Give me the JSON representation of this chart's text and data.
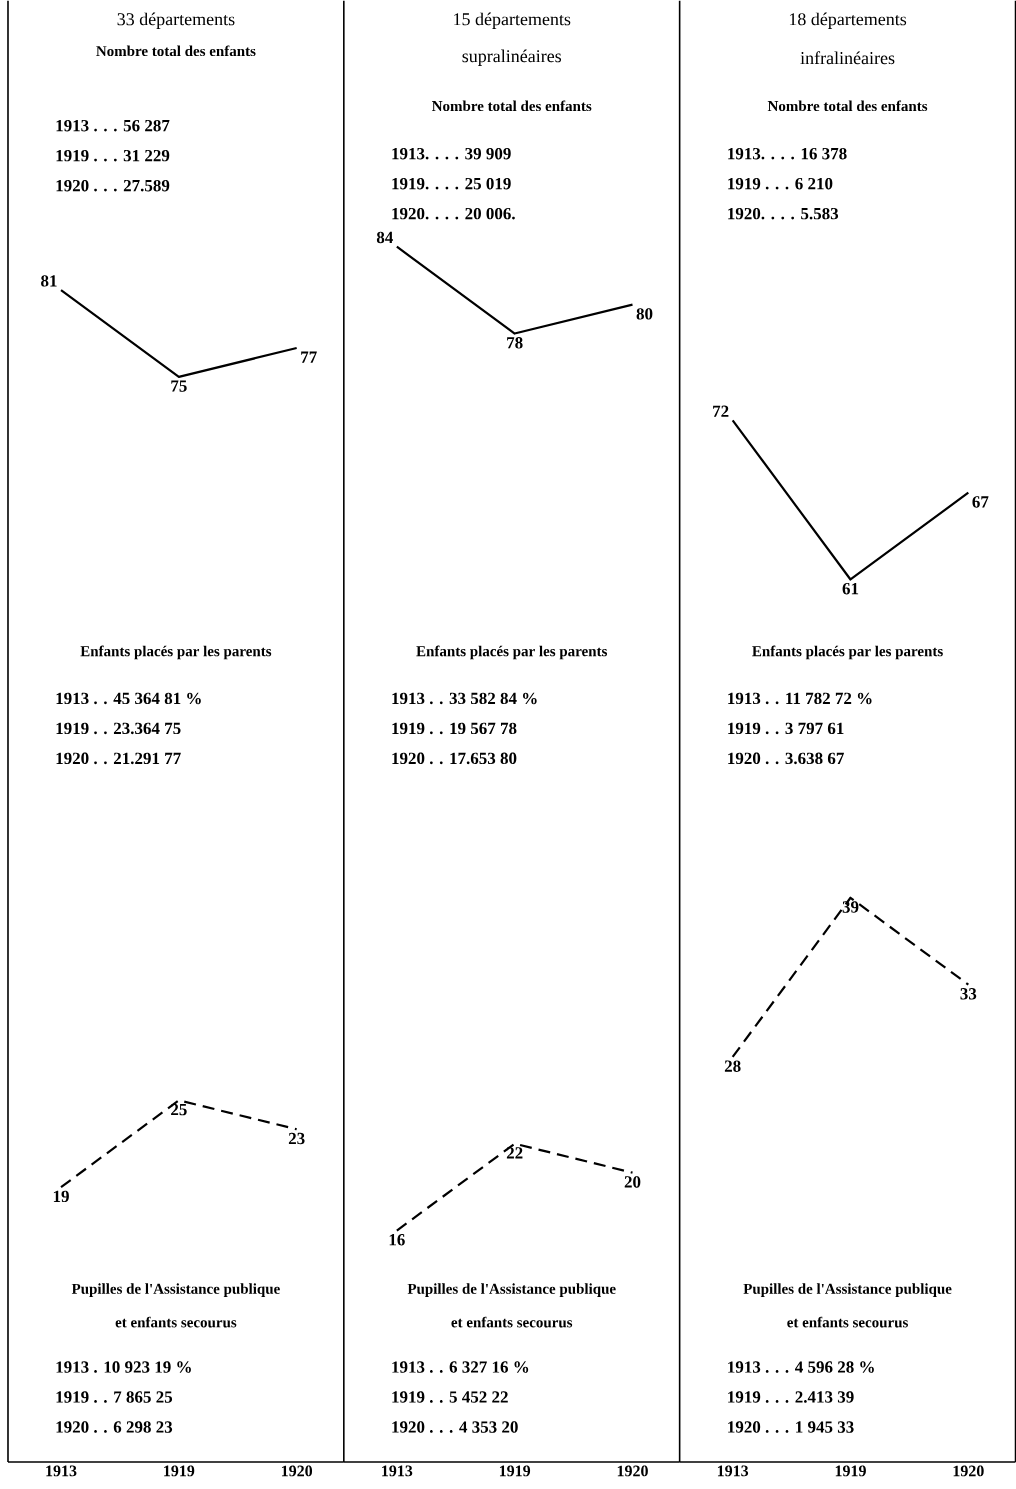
{
  "chart_data": [
    {
      "type": "line",
      "title": "33 départements",
      "categories": [
        "1913",
        "1919",
        "1920"
      ],
      "ylim": [
        0,
        101
      ],
      "data_labels": true,
      "series": [
        {
          "color": "#000000",
          "line_style": "solid",
          "values": [
            81,
            75,
            77
          ]
        },
        {
          "color": "#000000",
          "line_style": "dashed",
          "values": [
            19,
            25,
            23
          ]
        }
      ],
      "annotations": [
        "Nombre total des enfants",
        "1913 . . . 56 287",
        "1919 . . . 31 229",
        "1920 . . . 27.589",
        "Enfants placés par les parents",
        "1913 . . 45 364 81 %",
        "1919 . . 23.364 75",
        "1920 . . 21.291 77",
        "Pupilles de l'Assistance publique",
        "et enfants secourus",
        "1913 . 10 923 19 %",
        "1919 . . 7 865 25",
        "1920 . . 6 298 23"
      ]
    },
    {
      "type": "line",
      "title": "15 départements",
      "subtitle": "supralinéaires",
      "categories": [
        "1913",
        "1919",
        "1920"
      ],
      "ylim": [
        0,
        101
      ],
      "data_labels": true,
      "series": [
        {
          "color": "#000000",
          "line_style": "solid",
          "values": [
            84,
            78,
            80
          ]
        },
        {
          "color": "#000000",
          "line_style": "dashed",
          "values": [
            16,
            22,
            20
          ]
        }
      ],
      "annotations": [
        "Nombre total des enfants",
        "1913. . . . 39 909",
        "1919. . . . 25 019",
        "1920. . . . 20 006.",
        "Enfants placés par les parents",
        "1913 . . 33 582 84 %",
        "1919 . . 19 567 78",
        "1920 . . 17.653 80",
        "Pupilles de l'Assistance publique",
        "et enfants secourus",
        "1913 . . 6 327 16 %",
        "1919 . . 5 452 22",
        "1920 . . . 4 353 20"
      ]
    },
    {
      "type": "line",
      "title": "18 départements",
      "subtitle": "infralinéaires",
      "categories": [
        "1913",
        "1919",
        "1920"
      ],
      "ylim": [
        0,
        101
      ],
      "data_labels": true,
      "series": [
        {
          "color": "#000000",
          "line_style": "solid",
          "values": [
            72,
            61,
            67
          ]
        },
        {
          "color": "#000000",
          "line_style": "dashed",
          "values": [
            28,
            39,
            33
          ]
        }
      ],
      "annotations": [
        "Nombre total des enfants",
        "1913. . . . 16 378",
        "1919 . . . 6 210",
        "1920. . . . 5.583",
        "Enfants placés par les parents",
        "1913 . . 11 782 72 %",
        "1919 . . 3 797 61",
        "1920 . . 3.638 67",
        "Pupilles de l'Assistance publique",
        "et enfants secourus",
        "1913 . . . 4 596 28 %",
        "1919 . . . 2.413 39",
        "1920 . . . 1 945 33"
      ]
    }
  ]
}
